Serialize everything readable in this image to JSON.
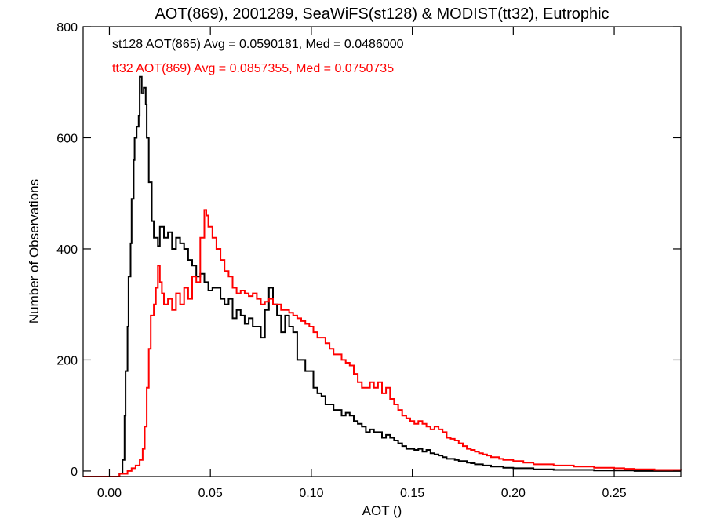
{
  "chart_data": {
    "type": "line",
    "title": "AOT(869), 2001289, SeaWiFS(st128) & MODIST(tt32), Eutrophic",
    "xlabel": "AOT ()",
    "ylabel": "Number of Observations",
    "xlim": [
      -0.013,
      0.283
    ],
    "ylim": [
      -10,
      800
    ],
    "x_ticks": [
      {
        "value": 0.0,
        "label": "0.00"
      },
      {
        "value": 0.05,
        "label": "0.05"
      },
      {
        "value": 0.1,
        "label": "0.10"
      },
      {
        "value": 0.15,
        "label": "0.15"
      },
      {
        "value": 0.2,
        "label": "0.20"
      },
      {
        "value": 0.25,
        "label": "0.25"
      }
    ],
    "y_ticks": [
      {
        "value": 0,
        "label": "0"
      },
      {
        "value": 200,
        "label": "200"
      },
      {
        "value": 400,
        "label": "400"
      },
      {
        "value": 600,
        "label": "600"
      },
      {
        "value": 800,
        "label": "800"
      }
    ],
    "grid": false,
    "annotations": [
      {
        "text": "st128 AOT(865) Avg = 0.0590181, Med = 0.0486000",
        "color": "#000000"
      },
      {
        "text": "tt32 AOT(869) Avg = 0.0857355, Med = 0.0750735",
        "color": "#ff0000"
      }
    ],
    "series": [
      {
        "color": "#000000",
        "points": [
          [
            -0.013,
            -10
          ],
          [
            0.0,
            -10
          ],
          [
            0.005,
            -5
          ],
          [
            0.0065,
            20
          ],
          [
            0.0075,
            100
          ],
          [
            0.008,
            180
          ],
          [
            0.009,
            260
          ],
          [
            0.0095,
            350
          ],
          [
            0.0105,
            410
          ],
          [
            0.011,
            490
          ],
          [
            0.012,
            560
          ],
          [
            0.0125,
            600
          ],
          [
            0.0135,
            620
          ],
          [
            0.0145,
            640
          ],
          [
            0.015,
            710
          ],
          [
            0.016,
            680
          ],
          [
            0.017,
            690
          ],
          [
            0.018,
            660
          ],
          [
            0.0185,
            600
          ],
          [
            0.0195,
            520
          ],
          [
            0.021,
            450
          ],
          [
            0.022,
            420
          ],
          [
            0.024,
            405
          ],
          [
            0.025,
            440
          ],
          [
            0.027,
            420
          ],
          [
            0.029,
            430
          ],
          [
            0.031,
            400
          ],
          [
            0.033,
            420
          ],
          [
            0.035,
            410
          ],
          [
            0.037,
            400
          ],
          [
            0.039,
            380
          ],
          [
            0.041,
            370
          ],
          [
            0.043,
            350
          ],
          [
            0.045,
            355
          ],
          [
            0.047,
            340
          ],
          [
            0.049,
            325
          ],
          [
            0.051,
            330
          ],
          [
            0.053,
            330
          ],
          [
            0.055,
            310
          ],
          [
            0.057,
            300
          ],
          [
            0.059,
            310
          ],
          [
            0.061,
            275
          ],
          [
            0.063,
            290
          ],
          [
            0.065,
            280
          ],
          [
            0.067,
            265
          ],
          [
            0.069,
            275
          ],
          [
            0.071,
            260
          ],
          [
            0.073,
            260
          ],
          [
            0.075,
            240
          ],
          [
            0.077,
            290
          ],
          [
            0.079,
            330
          ],
          [
            0.081,
            300
          ],
          [
            0.083,
            280
          ],
          [
            0.085,
            250
          ],
          [
            0.087,
            280
          ],
          [
            0.089,
            260
          ],
          [
            0.091,
            250
          ],
          [
            0.093,
            200
          ],
          [
            0.095,
            200
          ],
          [
            0.097,
            180
          ],
          [
            0.099,
            180
          ],
          [
            0.101,
            150
          ],
          [
            0.103,
            140
          ],
          [
            0.105,
            135
          ],
          [
            0.107,
            120
          ],
          [
            0.109,
            120
          ],
          [
            0.111,
            110
          ],
          [
            0.113,
            110
          ],
          [
            0.115,
            100
          ],
          [
            0.117,
            105
          ],
          [
            0.119,
            100
          ],
          [
            0.121,
            90
          ],
          [
            0.123,
            85
          ],
          [
            0.125,
            80
          ],
          [
            0.127,
            70
          ],
          [
            0.129,
            75
          ],
          [
            0.131,
            70
          ],
          [
            0.133,
            70
          ],
          [
            0.135,
            60
          ],
          [
            0.137,
            65
          ],
          [
            0.139,
            60
          ],
          [
            0.141,
            55
          ],
          [
            0.143,
            50
          ],
          [
            0.145,
            45
          ],
          [
            0.147,
            40
          ],
          [
            0.149,
            40
          ],
          [
            0.151,
            38
          ],
          [
            0.153,
            40
          ],
          [
            0.155,
            35
          ],
          [
            0.157,
            38
          ],
          [
            0.159,
            32
          ],
          [
            0.161,
            30
          ],
          [
            0.163,
            28
          ],
          [
            0.165,
            25
          ],
          [
            0.167,
            22
          ],
          [
            0.169,
            22
          ],
          [
            0.171,
            20
          ],
          [
            0.173,
            18
          ],
          [
            0.175,
            18
          ],
          [
            0.177,
            15
          ],
          [
            0.179,
            14
          ],
          [
            0.181,
            12
          ],
          [
            0.183,
            12
          ],
          [
            0.185,
            10
          ],
          [
            0.187,
            10
          ],
          [
            0.189,
            8
          ],
          [
            0.191,
            8
          ],
          [
            0.195,
            6
          ],
          [
            0.2,
            5
          ],
          [
            0.21,
            3
          ],
          [
            0.22,
            2
          ],
          [
            0.24,
            1
          ],
          [
            0.26,
            0
          ],
          [
            0.283,
            0
          ]
        ]
      },
      {
        "color": "#ff0000",
        "points": [
          [
            -0.013,
            -10
          ],
          [
            0.002,
            -10
          ],
          [
            0.005,
            -5
          ],
          [
            0.009,
            0
          ],
          [
            0.011,
            5
          ],
          [
            0.013,
            10
          ],
          [
            0.015,
            20
          ],
          [
            0.0165,
            40
          ],
          [
            0.0175,
            80
          ],
          [
            0.0185,
            150
          ],
          [
            0.0195,
            220
          ],
          [
            0.0205,
            280
          ],
          [
            0.022,
            300
          ],
          [
            0.023,
            330
          ],
          [
            0.024,
            370
          ],
          [
            0.025,
            340
          ],
          [
            0.026,
            320
          ],
          [
            0.027,
            300
          ],
          [
            0.029,
            310
          ],
          [
            0.031,
            290
          ],
          [
            0.033,
            320
          ],
          [
            0.035,
            300
          ],
          [
            0.037,
            330
          ],
          [
            0.039,
            310
          ],
          [
            0.041,
            350
          ],
          [
            0.043,
            340
          ],
          [
            0.045,
            420
          ],
          [
            0.047,
            470
          ],
          [
            0.048,
            460
          ],
          [
            0.049,
            440
          ],
          [
            0.051,
            420
          ],
          [
            0.053,
            400
          ],
          [
            0.055,
            380
          ],
          [
            0.057,
            360
          ],
          [
            0.059,
            350
          ],
          [
            0.061,
            330
          ],
          [
            0.063,
            320
          ],
          [
            0.065,
            325
          ],
          [
            0.067,
            320
          ],
          [
            0.069,
            315
          ],
          [
            0.071,
            320
          ],
          [
            0.073,
            310
          ],
          [
            0.075,
            300
          ],
          [
            0.077,
            305
          ],
          [
            0.079,
            310
          ],
          [
            0.081,
            300
          ],
          [
            0.083,
            300
          ],
          [
            0.085,
            290
          ],
          [
            0.087,
            290
          ],
          [
            0.089,
            285
          ],
          [
            0.091,
            280
          ],
          [
            0.093,
            275
          ],
          [
            0.095,
            270
          ],
          [
            0.097,
            265
          ],
          [
            0.099,
            260
          ],
          [
            0.101,
            250
          ],
          [
            0.103,
            240
          ],
          [
            0.105,
            240
          ],
          [
            0.107,
            230
          ],
          [
            0.109,
            220
          ],
          [
            0.111,
            210
          ],
          [
            0.113,
            210
          ],
          [
            0.115,
            200
          ],
          [
            0.117,
            195
          ],
          [
            0.119,
            190
          ],
          [
            0.121,
            175
          ],
          [
            0.123,
            160
          ],
          [
            0.125,
            150
          ],
          [
            0.127,
            150
          ],
          [
            0.129,
            160
          ],
          [
            0.131,
            150
          ],
          [
            0.133,
            160
          ],
          [
            0.135,
            140
          ],
          [
            0.137,
            150
          ],
          [
            0.139,
            130
          ],
          [
            0.141,
            120
          ],
          [
            0.143,
            110
          ],
          [
            0.145,
            100
          ],
          [
            0.147,
            95
          ],
          [
            0.149,
            90
          ],
          [
            0.151,
            85
          ],
          [
            0.153,
            90
          ],
          [
            0.155,
            85
          ],
          [
            0.157,
            80
          ],
          [
            0.159,
            75
          ],
          [
            0.161,
            80
          ],
          [
            0.163,
            75
          ],
          [
            0.165,
            70
          ],
          [
            0.167,
            60
          ],
          [
            0.169,
            58
          ],
          [
            0.171,
            55
          ],
          [
            0.173,
            50
          ],
          [
            0.175,
            45
          ],
          [
            0.177,
            40
          ],
          [
            0.179,
            38
          ],
          [
            0.181,
            35
          ],
          [
            0.183,
            32
          ],
          [
            0.185,
            30
          ],
          [
            0.187,
            28
          ],
          [
            0.189,
            25
          ],
          [
            0.191,
            25
          ],
          [
            0.193,
            22
          ],
          [
            0.195,
            20
          ],
          [
            0.197,
            20
          ],
          [
            0.2,
            18
          ],
          [
            0.205,
            15
          ],
          [
            0.21,
            12
          ],
          [
            0.215,
            12
          ],
          [
            0.22,
            10
          ],
          [
            0.225,
            10
          ],
          [
            0.23,
            8
          ],
          [
            0.235,
            8
          ],
          [
            0.24,
            6
          ],
          [
            0.245,
            6
          ],
          [
            0.25,
            5
          ],
          [
            0.255,
            4
          ],
          [
            0.26,
            3
          ],
          [
            0.265,
            3
          ],
          [
            0.27,
            2
          ],
          [
            0.275,
            2
          ],
          [
            0.283,
            1
          ]
        ]
      }
    ]
  }
}
